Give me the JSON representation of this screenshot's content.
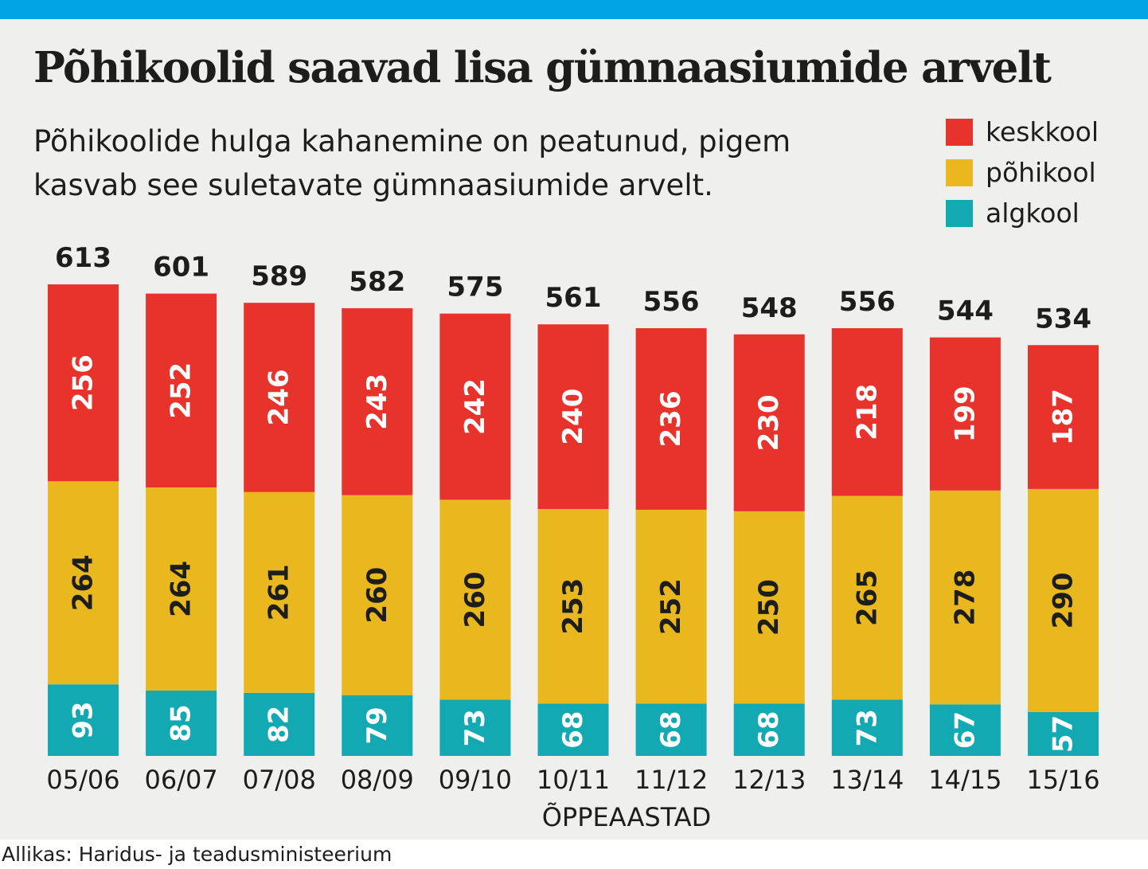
{
  "colors": {
    "top_bar": "#00a5e5",
    "keskkool": "#e8322c",
    "pohikool": "#e9b81e",
    "algkool": "#13a9b3"
  },
  "title": "Põhikoolid saavad lisa gümnaasiumide arvelt",
  "subtitle_line1": "Põhikoolide hulga kahanemine on peatunud, pigem",
  "subtitle_line2": "kasvab see suletavate gümnaasiumide arvelt.",
  "source": "Allikas: Haridus- ja teadusministeerium",
  "chart_data": {
    "type": "bar",
    "stacked": true,
    "title": "Põhikoolid saavad lisa gümnaasiumide arvelt",
    "xlabel": "ÕPPEAASTAD",
    "ylabel": "",
    "legend_position": "top-right",
    "grid": false,
    "categories": [
      "05/06",
      "06/07",
      "07/08",
      "08/09",
      "09/10",
      "10/11",
      "11/12",
      "12/13",
      "13/14",
      "14/15",
      "15/16"
    ],
    "series": [
      {
        "name": "algkool",
        "color": "#13a9b3",
        "values": [
          93,
          85,
          82,
          79,
          73,
          68,
          68,
          68,
          73,
          67,
          57
        ]
      },
      {
        "name": "põhikool",
        "color": "#e9b81e",
        "values": [
          264,
          264,
          261,
          260,
          260,
          253,
          252,
          250,
          265,
          278,
          290
        ]
      },
      {
        "name": "keskkool",
        "color": "#e8322c",
        "values": [
          256,
          252,
          246,
          243,
          242,
          240,
          236,
          230,
          218,
          199,
          187
        ]
      }
    ],
    "totals": [
      613,
      601,
      589,
      582,
      575,
      561,
      556,
      548,
      556,
      544,
      534
    ],
    "legend_order": [
      "keskkool",
      "põhikool",
      "algkool"
    ],
    "ylim": [
      0,
      613
    ]
  }
}
